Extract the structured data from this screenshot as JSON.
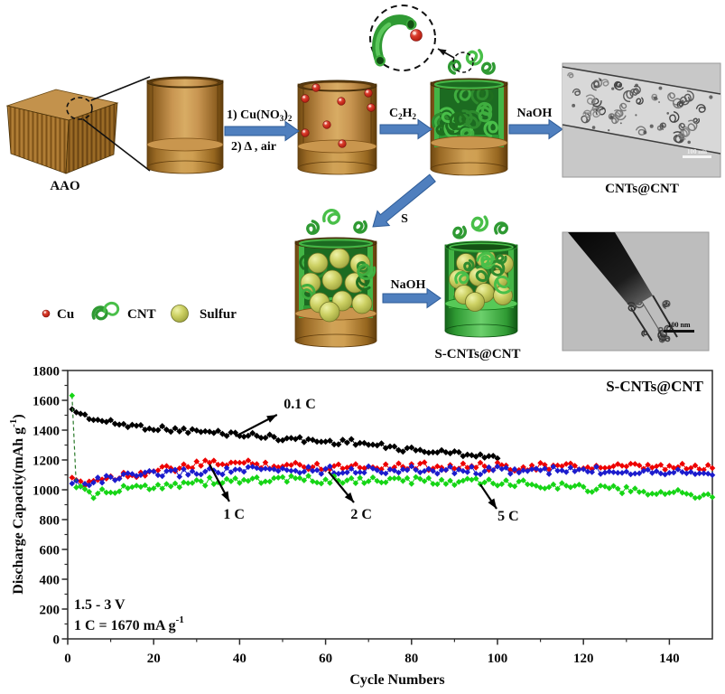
{
  "diagram": {
    "aao_label": "AAO",
    "cu_step": {
      "p1": "1) Cu(NO",
      "s1": "3",
      "p2": ")",
      "s2": "2"
    },
    "heat_step": "2) Δ , air",
    "c2h2": {
      "p1": "C",
      "s1": "2",
      "p2": "H",
      "s2": "2"
    },
    "naoh_top": "NaOH",
    "s_label": "S",
    "naoh_bottom": "NaOH",
    "cnts_cnt_label": "CNTs@CNT",
    "s_cnts_cnt_label": "S-CNTs@CNT",
    "tem1_scalebar": "100 nm",
    "tem2_scalebar": "100 nm",
    "legend": {
      "cu": "Cu",
      "cnt": "CNT",
      "sulfur": "Sulfur"
    }
  },
  "chart_data": {
    "type": "scatter",
    "title": "S-CNTs@CNT",
    "xlabel": "Cycle Numbers",
    "ylabel": "Discharge Capacity(mAh g⁻¹)",
    "ylabel_main": "Discharge Capacity(mAh g",
    "ylabel_sup": "-1",
    "ylabel_close": ")",
    "xlim": [
      0,
      150
    ],
    "ylim": [
      0,
      1800
    ],
    "x_ticks": [
      0,
      20,
      40,
      60,
      80,
      100,
      120,
      140
    ],
    "x_minor_step": 10,
    "y_ticks": [
      0,
      200,
      400,
      600,
      800,
      1000,
      1200,
      1400,
      1600,
      1800
    ],
    "y_minor_step": 100,
    "grid": false,
    "legend_position": "none",
    "inset_text": {
      "line1": "1.5 - 3 V",
      "line2_main": "1 C = 1670 mA g",
      "line2_sup": "-1"
    },
    "annotations": [
      {
        "label": "0.1 C",
        "text_x": 54,
        "text_y": 1545,
        "tail_x": 39,
        "tail_y": 1358,
        "head_x": 48.7,
        "head_y": 1503
      },
      {
        "label": "1 C",
        "text_x": 38.7,
        "text_y": 806,
        "tail_x": 33,
        "tail_y": 1170,
        "head_x": 37.6,
        "head_y": 921
      },
      {
        "label": "2 C",
        "text_x": 68.3,
        "text_y": 806,
        "tail_x": 60.7,
        "tail_y": 1121,
        "head_x": 66.6,
        "head_y": 915
      },
      {
        "label": "5 C",
        "text_x": 102.5,
        "text_y": 794,
        "tail_x": 96,
        "tail_y": 1036,
        "head_x": 99.8,
        "head_y": 873
      }
    ],
    "series": [
      {
        "name": "0.1 C",
        "color": "#000000",
        "marker": "diamond",
        "points": [
          [
            1,
            1540
          ],
          [
            2,
            1522
          ],
          [
            3,
            1508
          ],
          [
            4,
            1496
          ],
          [
            5,
            1486
          ],
          [
            6,
            1477
          ],
          [
            7,
            1469
          ],
          [
            8,
            1462
          ],
          [
            10,
            1450
          ],
          [
            12,
            1441
          ],
          [
            14,
            1433
          ],
          [
            16,
            1427
          ],
          [
            18,
            1421
          ],
          [
            20,
            1415
          ],
          [
            22,
            1410
          ],
          [
            24,
            1405
          ],
          [
            26,
            1401
          ],
          [
            28,
            1397
          ],
          [
            30,
            1392
          ],
          [
            32,
            1388
          ],
          [
            34,
            1384
          ],
          [
            36,
            1380
          ],
          [
            38,
            1376
          ],
          [
            40,
            1371
          ],
          [
            42,
            1367
          ],
          [
            44,
            1362
          ],
          [
            46,
            1357
          ],
          [
            48,
            1352
          ],
          [
            50,
            1347
          ],
          [
            52,
            1342
          ],
          [
            54,
            1337
          ],
          [
            56,
            1332
          ],
          [
            58,
            1327
          ],
          [
            60,
            1323
          ],
          [
            62,
            1320
          ],
          [
            64,
            1322
          ],
          [
            66,
            1324
          ],
          [
            68,
            1315
          ],
          [
            70,
            1305
          ],
          [
            72,
            1296
          ],
          [
            74,
            1288
          ],
          [
            76,
            1281
          ],
          [
            78,
            1274
          ],
          [
            80,
            1268
          ],
          [
            82,
            1263
          ],
          [
            84,
            1258
          ],
          [
            86,
            1254
          ],
          [
            88,
            1250
          ],
          [
            90,
            1246
          ],
          [
            92,
            1242
          ],
          [
            94,
            1238
          ],
          [
            96,
            1232
          ],
          [
            98,
            1224
          ],
          [
            100,
            1214
          ]
        ]
      },
      {
        "name": "1 C",
        "color": "#ee0000",
        "marker": "diamond",
        "points": [
          [
            1,
            1082
          ],
          [
            2,
            1058
          ],
          [
            3,
            1048
          ],
          [
            4,
            1052
          ],
          [
            5,
            1058
          ],
          [
            6,
            1064
          ],
          [
            8,
            1074
          ],
          [
            10,
            1084
          ],
          [
            12,
            1094
          ],
          [
            14,
            1102
          ],
          [
            16,
            1110
          ],
          [
            18,
            1118
          ],
          [
            20,
            1126
          ],
          [
            22,
            1133
          ],
          [
            24,
            1140
          ],
          [
            26,
            1148
          ],
          [
            28,
            1156
          ],
          [
            30,
            1164
          ],
          [
            32,
            1172
          ],
          [
            34,
            1179
          ],
          [
            36,
            1183
          ],
          [
            38,
            1181
          ],
          [
            40,
            1178
          ],
          [
            42,
            1175
          ],
          [
            44,
            1172
          ],
          [
            46,
            1169
          ],
          [
            48,
            1166
          ],
          [
            50,
            1164
          ],
          [
            52,
            1162
          ],
          [
            54,
            1161
          ],
          [
            56,
            1160
          ],
          [
            58,
            1159
          ],
          [
            60,
            1158
          ],
          [
            65,
            1159
          ],
          [
            70,
            1161
          ],
          [
            75,
            1160
          ],
          [
            80,
            1159
          ],
          [
            85,
            1158
          ],
          [
            90,
            1157
          ],
          [
            95,
            1156
          ],
          [
            100,
            1156
          ],
          [
            105,
            1155
          ],
          [
            110,
            1155
          ],
          [
            115,
            1154
          ],
          [
            120,
            1153
          ],
          [
            125,
            1152
          ],
          [
            130,
            1151
          ],
          [
            135,
            1150
          ],
          [
            140,
            1150
          ],
          [
            145,
            1149
          ],
          [
            150,
            1148
          ]
        ]
      },
      {
        "name": "2 C",
        "color": "#1c1ccd",
        "marker": "diamond",
        "points": [
          [
            1,
            1042
          ],
          [
            2,
            1050
          ],
          [
            3,
            1043
          ],
          [
            4,
            1047
          ],
          [
            5,
            1052
          ],
          [
            6,
            1058
          ],
          [
            8,
            1066
          ],
          [
            10,
            1074
          ],
          [
            12,
            1081
          ],
          [
            14,
            1087
          ],
          [
            16,
            1093
          ],
          [
            18,
            1098
          ],
          [
            20,
            1103
          ],
          [
            24,
            1111
          ],
          [
            28,
            1117
          ],
          [
            32,
            1122
          ],
          [
            36,
            1126
          ],
          [
            40,
            1129
          ],
          [
            44,
            1131
          ],
          [
            48,
            1132
          ],
          [
            52,
            1133
          ],
          [
            56,
            1133
          ],
          [
            60,
            1133
          ],
          [
            70,
            1132
          ],
          [
            80,
            1131
          ],
          [
            90,
            1131
          ],
          [
            100,
            1130
          ],
          [
            110,
            1129
          ],
          [
            120,
            1129
          ],
          [
            130,
            1128
          ],
          [
            140,
            1127
          ],
          [
            150,
            1126
          ]
        ]
      },
      {
        "name": "5 C",
        "color": "#16d516",
        "marker": "diamond",
        "drop_dashed": true,
        "points": [
          [
            1,
            1632
          ],
          [
            2,
            1018
          ],
          [
            3,
            998
          ],
          [
            4,
            983
          ],
          [
            5,
            974
          ],
          [
            6,
            970
          ],
          [
            7,
            972
          ],
          [
            8,
            977
          ],
          [
            10,
            986
          ],
          [
            12,
            996
          ],
          [
            14,
            1006
          ],
          [
            16,
            1014
          ],
          [
            18,
            1021
          ],
          [
            20,
            1027
          ],
          [
            24,
            1038
          ],
          [
            28,
            1047
          ],
          [
            32,
            1054
          ],
          [
            36,
            1059
          ],
          [
            40,
            1063
          ],
          [
            44,
            1065
          ],
          [
            48,
            1066
          ],
          [
            52,
            1067
          ],
          [
            56,
            1067
          ],
          [
            60,
            1066
          ],
          [
            65,
            1065
          ],
          [
            70,
            1064
          ],
          [
            75,
            1062
          ],
          [
            80,
            1060
          ],
          [
            85,
            1057
          ],
          [
            90,
            1054
          ],
          [
            95,
            1050
          ],
          [
            100,
            1046
          ],
          [
            105,
            1041
          ],
          [
            110,
            1036
          ],
          [
            115,
            1026
          ],
          [
            120,
            1014
          ],
          [
            125,
            1004
          ],
          [
            130,
            996
          ],
          [
            135,
            988
          ],
          [
            140,
            979
          ],
          [
            144,
            970
          ],
          [
            147,
            962
          ],
          [
            150,
            956
          ]
        ]
      }
    ]
  }
}
